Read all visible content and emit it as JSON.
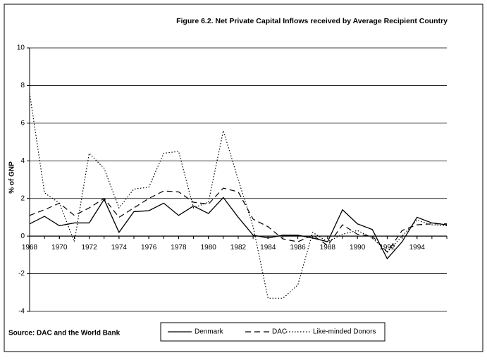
{
  "chart_data": {
    "type": "line",
    "title": "Figure 6.2.  Net Private Capital Inflows received by Average Recipient Country",
    "y_label": "% of GNP",
    "source": "Source: DAC and the World Bank",
    "x": [
      1968,
      1969,
      1970,
      1971,
      1972,
      1973,
      1974,
      1975,
      1976,
      1977,
      1978,
      1979,
      1980,
      1981,
      1982,
      1983,
      1984,
      1985,
      1986,
      1987,
      1988,
      1989,
      1990,
      1991,
      1992,
      1993,
      1994,
      1995,
      1996
    ],
    "xlim": [
      1968,
      1996
    ],
    "xticks": [
      1968,
      1970,
      1972,
      1974,
      1976,
      1978,
      1980,
      1982,
      1984,
      1986,
      1988,
      1990,
      1992,
      1994
    ],
    "ylim": [
      -4,
      10
    ],
    "yticks": [
      -4,
      -2,
      0,
      2,
      4,
      6,
      8,
      10
    ],
    "grid": true,
    "legend": "bottom",
    "series": [
      {
        "name": "Denmark",
        "color": "#000000",
        "dash": "solid",
        "values": [
          0.65,
          1.05,
          0.55,
          0.7,
          0.7,
          1.95,
          0.2,
          1.3,
          1.35,
          1.75,
          1.1,
          1.6,
          1.2,
          2.05,
          1.0,
          0.05,
          -0.1,
          0.05,
          0.05,
          -0.1,
          -0.3,
          1.4,
          0.65,
          0.35,
          -1.2,
          -0.3,
          1.0,
          0.7,
          0.6
        ]
      },
      {
        "name": "DAC",
        "color": "#000000",
        "dash": "dashed",
        "values": [
          1.1,
          1.4,
          1.75,
          1.1,
          1.5,
          2.0,
          1.0,
          1.5,
          2.0,
          2.4,
          2.35,
          1.8,
          1.7,
          2.55,
          2.35,
          0.9,
          0.5,
          -0.15,
          -0.3,
          0.05,
          -0.5,
          0.6,
          0.1,
          0.0,
          -0.85,
          0.3,
          0.6,
          0.65,
          0.65
        ]
      },
      {
        "name": "Like-minded Donors",
        "color": "#000000",
        "dash": "dotted",
        "values": [
          7.6,
          2.3,
          1.75,
          -0.3,
          4.4,
          3.6,
          1.5,
          2.5,
          2.6,
          4.4,
          4.5,
          1.5,
          1.8,
          5.6,
          3.0,
          0.5,
          -3.3,
          -3.3,
          -2.6,
          0.2,
          -0.3,
          0.1,
          0.3,
          -0.1,
          -0.85,
          0.0,
          0.85,
          0.6,
          0.55
        ]
      }
    ]
  }
}
